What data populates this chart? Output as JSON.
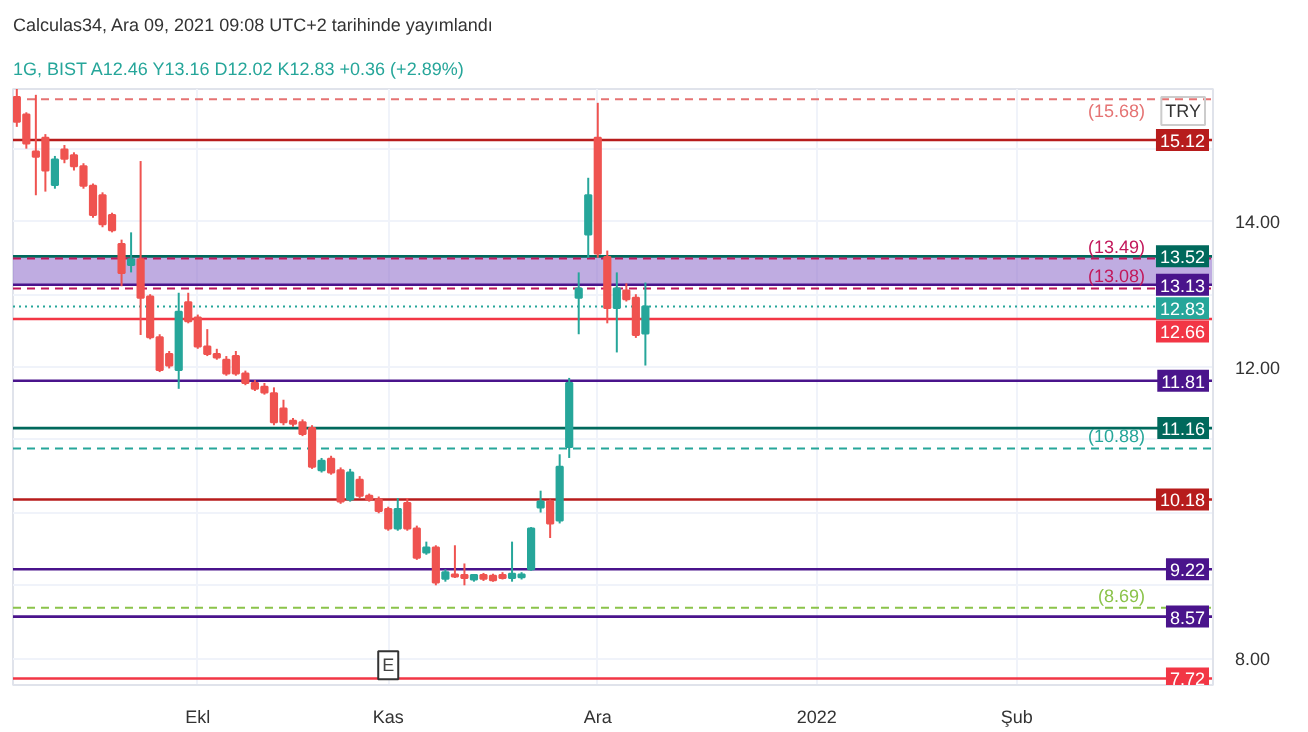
{
  "chart_data": {
    "type": "candlestick",
    "title": "Calculas34, Ara 09, 2021 09:08 UTC+2 tarihinde yayımlandı",
    "subtitle": "1G, BIST  A12.46  Y13.16  D12.02  K12.83  +0.36 (+2.89%)",
    "categories": [
      null,
      null,
      null,
      null,
      null,
      null,
      null,
      null,
      null,
      null,
      null,
      null,
      null,
      null,
      null,
      null,
      null,
      null,
      null,
      "Ekl",
      null,
      null,
      null,
      null,
      null,
      null,
      null,
      null,
      null,
      null,
      null,
      null,
      null,
      null,
      null,
      null,
      null,
      null,
      null,
      "Kas",
      null,
      null,
      null,
      null,
      null,
      null,
      null,
      null,
      null,
      null,
      null,
      null,
      null,
      null,
      null,
      null,
      null,
      null,
      null,
      null,
      null,
      "Ara",
      null,
      null,
      null,
      null,
      null,
      null,
      null,
      null,
      null,
      null,
      null,
      null,
      null,
      null,
      null,
      null,
      null,
      null,
      null,
      null,
      null,
      null,
      "2022",
      null,
      null,
      null,
      null,
      null,
      null,
      null,
      null,
      null,
      null,
      null,
      null,
      null,
      null,
      null,
      null,
      null,
      null,
      null,
      null,
      "Şub",
      null,
      null,
      null,
      null,
      null,
      null,
      null,
      null,
      null,
      null,
      null,
      null,
      null,
      null,
      null,
      null,
      null,
      null,
      null,
      null
    ],
    "ohlc": [
      [
        15.71,
        15.9,
        15.3,
        15.37
      ],
      [
        15.47,
        15.5,
        15.0,
        15.07
      ],
      [
        14.96,
        15.74,
        14.36,
        14.89
      ],
      [
        15.15,
        15.2,
        14.41,
        14.7
      ],
      [
        14.5,
        14.9,
        14.45,
        14.85
      ],
      [
        14.99,
        15.05,
        14.8,
        14.86
      ],
      [
        14.91,
        14.95,
        14.7,
        14.76
      ],
      [
        14.76,
        14.8,
        14.45,
        14.49
      ],
      [
        14.49,
        14.52,
        14.05,
        14.09
      ],
      [
        14.36,
        14.4,
        13.92,
        13.96
      ],
      [
        14.09,
        14.12,
        13.85,
        13.88
      ],
      [
        13.69,
        13.75,
        13.11,
        13.29
      ],
      [
        13.4,
        13.85,
        13.3,
        13.48
      ],
      [
        13.48,
        14.83,
        12.44,
        12.95
      ],
      [
        12.97,
        13.0,
        12.38,
        12.41
      ],
      [
        12.41,
        12.45,
        11.93,
        11.96
      ],
      [
        12.18,
        12.22,
        11.98,
        12.02
      ],
      [
        11.96,
        13.02,
        11.7,
        12.76
      ],
      [
        12.89,
        13.02,
        12.6,
        12.63
      ],
      [
        12.68,
        12.72,
        12.25,
        12.28
      ],
      [
        12.28,
        12.52,
        12.15,
        12.18
      ],
      [
        12.18,
        12.25,
        12.1,
        12.13
      ],
      [
        12.1,
        12.15,
        11.88,
        11.91
      ],
      [
        12.15,
        12.22,
        11.88,
        11.91
      ],
      [
        11.91,
        11.95,
        11.75,
        11.78
      ],
      [
        11.78,
        11.82,
        11.67,
        11.7
      ],
      [
        11.73,
        11.78,
        11.62,
        11.65
      ],
      [
        11.64,
        11.72,
        11.2,
        11.24
      ],
      [
        11.43,
        11.55,
        11.2,
        11.24
      ],
      [
        11.26,
        11.3,
        11.18,
        11.22
      ],
      [
        11.24,
        11.28,
        11.05,
        11.08
      ],
      [
        11.16,
        11.2,
        10.6,
        10.63
      ],
      [
        10.58,
        10.75,
        10.55,
        10.71
      ],
      [
        10.74,
        10.78,
        10.52,
        10.55
      ],
      [
        10.58,
        10.62,
        10.12,
        10.15
      ],
      [
        10.18,
        10.6,
        10.15,
        10.55
      ],
      [
        10.45,
        10.5,
        10.2,
        10.23
      ],
      [
        10.23,
        10.26,
        10.15,
        10.18
      ],
      [
        10.18,
        10.22,
        9.99,
        10.02
      ],
      [
        10.05,
        10.08,
        9.75,
        9.78
      ],
      [
        9.78,
        10.2,
        9.75,
        10.05
      ],
      [
        10.13,
        10.2,
        9.75,
        9.78
      ],
      [
        9.78,
        9.82,
        9.35,
        9.38
      ],
      [
        9.45,
        9.6,
        9.42,
        9.52
      ],
      [
        9.52,
        9.55,
        9.0,
        9.04
      ],
      [
        9.09,
        9.22,
        9.05,
        9.18
      ],
      [
        9.15,
        9.55,
        9.1,
        9.12
      ],
      [
        9.14,
        9.3,
        9.0,
        9.1
      ],
      [
        9.08,
        9.15,
        9.05,
        9.14
      ],
      [
        9.14,
        9.17,
        9.06,
        9.09
      ],
      [
        9.13,
        9.16,
        9.05,
        9.07
      ],
      [
        9.14,
        9.18,
        9.08,
        9.1
      ],
      [
        9.1,
        9.6,
        9.05,
        9.16
      ],
      [
        9.11,
        9.18,
        9.08,
        9.15
      ],
      [
        9.22,
        9.8,
        9.2,
        9.78
      ],
      [
        10.07,
        10.3,
        10.0,
        10.15
      ],
      [
        10.15,
        10.18,
        9.65,
        9.85
      ],
      [
        9.89,
        10.8,
        9.85,
        10.63
      ],
      [
        10.9,
        11.85,
        10.75,
        11.78
      ],
      [
        12.95,
        13.3,
        12.45,
        13.08
      ],
      [
        13.82,
        14.6,
        13.5,
        14.36
      ],
      [
        15.15,
        15.63,
        13.5,
        13.56
      ],
      [
        13.51,
        13.6,
        12.6,
        12.81
      ],
      [
        12.81,
        13.3,
        12.2,
        13.08
      ],
      [
        13.05,
        13.15,
        12.9,
        12.93
      ],
      [
        12.95,
        13.0,
        12.4,
        12.44
      ],
      [
        12.46,
        13.16,
        12.02,
        12.83
      ],
      null,
      null,
      null,
      null,
      null,
      null,
      null,
      null,
      null,
      null,
      null,
      null,
      null,
      null,
      null,
      null,
      null,
      null,
      null,
      null,
      null,
      null,
      null,
      null,
      null,
      null,
      null,
      null,
      null,
      null,
      null,
      null,
      null,
      null,
      null,
      null,
      null,
      null,
      null,
      null,
      null,
      null,
      null,
      null,
      null,
      null,
      null,
      null,
      null,
      null,
      null,
      null,
      null,
      null,
      null,
      null,
      null,
      null,
      null
    ],
    "ylim": [
      7.63,
      15.82
    ],
    "yticks": [
      {
        "value": 8,
        "label": "8.00"
      },
      {
        "value": 9,
        "label": null
      },
      {
        "value": 10,
        "label": null
      },
      {
        "value": 11,
        "label": null
      },
      {
        "value": 12,
        "label": "12.00"
      },
      {
        "value": 13,
        "label": null
      },
      {
        "value": 14,
        "label": "14.00"
      },
      {
        "value": 15,
        "label": null
      }
    ],
    "grid": true,
    "ref_lines": [
      {
        "axis": "y",
        "value": 15.68,
        "label": "(15.68)",
        "color": "#e57373",
        "line_style": "dashed"
      },
      {
        "axis": "y",
        "value": 15.12,
        "label": "15.12",
        "color": "#b71c1c",
        "line_style": "solid"
      },
      {
        "axis": "y",
        "value": 13.52,
        "label": "13.52",
        "color": "#00695c",
        "line_style": "solid"
      },
      {
        "axis": "y",
        "value": 13.49,
        "label": "(13.49)",
        "color": "#c2185b",
        "line_style": "dashed"
      },
      {
        "axis": "y",
        "value": 13.13,
        "label": "13.13",
        "color": "#4a148c",
        "line_style": "solid"
      },
      {
        "axis": "y",
        "value": 13.08,
        "label": "(13.08)",
        "color": "#c2185b",
        "line_style": "dashed"
      },
      {
        "axis": "y",
        "value": 12.83,
        "label": "12.83",
        "color": "#26a69a",
        "line_style": "dotted"
      },
      {
        "axis": "y",
        "value": 12.66,
        "label": "12.66",
        "color": "#f23645",
        "line_style": "solid"
      },
      {
        "axis": "y",
        "value": 11.81,
        "label": "11.81",
        "color": "#4a148c",
        "line_style": "solid"
      },
      {
        "axis": "y",
        "value": 11.16,
        "label": "11.16",
        "color": "#00695c",
        "line_style": "solid"
      },
      {
        "axis": "y",
        "value": 10.88,
        "label": "(10.88)",
        "color": "#26a69a",
        "line_style": "dashed"
      },
      {
        "axis": "y",
        "value": 10.18,
        "label": "10.18",
        "color": "#b71c1c",
        "line_style": "solid"
      },
      {
        "axis": "y",
        "value": 9.22,
        "label": "9.22",
        "color": "#4a148c",
        "line_style": "solid"
      },
      {
        "axis": "y",
        "value": 8.69,
        "label": "(8.69)",
        "color": "#8bc34a",
        "line_style": "dashed"
      },
      {
        "axis": "y",
        "value": 8.57,
        "label": "8.57",
        "color": "#4a148c",
        "line_style": "solid"
      },
      {
        "axis": "y",
        "value": 7.72,
        "label": "7.72",
        "color": "#f23645",
        "line_style": "solid"
      }
    ],
    "bands": [
      {
        "axis": "y",
        "from": 13.13,
        "to": 13.52,
        "color": "#9575cd"
      }
    ],
    "annotations": [
      {
        "text": "E",
        "x": "Kas",
        "y": 7.9
      },
      "TRY"
    ]
  }
}
